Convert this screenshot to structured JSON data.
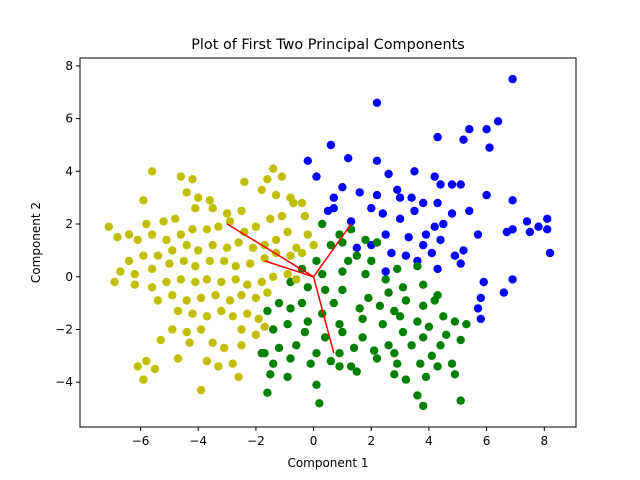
{
  "chart_data": {
    "type": "scatter",
    "title": "Plot of First Two Principal Components",
    "xlabel": "Component 1",
    "ylabel": "Component 2",
    "xlim": [
      -8.1,
      9.1
    ],
    "ylim": [
      -5.7,
      8.3
    ],
    "xticks": [
      -6,
      -4,
      -2,
      0,
      2,
      4,
      6,
      8
    ],
    "yticks": [
      -4,
      -2,
      0,
      2,
      4,
      6,
      8
    ],
    "grid": false,
    "legend": "none",
    "series": [
      {
        "color": "#0000ff",
        "points": [
          [
            6.9,
            7.5
          ],
          [
            2.2,
            6.6
          ],
          [
            5.4,
            5.6
          ],
          [
            6.4,
            5.9
          ],
          [
            4.3,
            5.3
          ],
          [
            6.0,
            5.6
          ],
          [
            5.2,
            5.2
          ],
          [
            6.1,
            4.9
          ],
          [
            0.6,
            5.0
          ],
          [
            -0.2,
            4.4
          ],
          [
            1.2,
            4.5
          ],
          [
            2.2,
            4.4
          ],
          [
            3.5,
            4.0
          ],
          [
            0.1,
            3.8
          ],
          [
            2.6,
            3.9
          ],
          [
            2.9,
            3.3
          ],
          [
            4.2,
            3.8
          ],
          [
            1.0,
            3.4
          ],
          [
            1.6,
            3.2
          ],
          [
            2.2,
            3.1
          ],
          [
            0.7,
            3.0
          ],
          [
            3.0,
            3.0
          ],
          [
            3.4,
            3.0
          ],
          [
            4.8,
            3.5
          ],
          [
            5.1,
            3.5
          ],
          [
            4.4,
            3.5
          ],
          [
            6.0,
            3.1
          ],
          [
            3.8,
            2.8
          ],
          [
            4.3,
            2.8
          ],
          [
            2.0,
            2.6
          ],
          [
            2.4,
            2.4
          ],
          [
            3.5,
            2.5
          ],
          [
            4.8,
            2.4
          ],
          [
            5.4,
            2.5
          ],
          [
            6.9,
            2.9
          ],
          [
            0.5,
            2.5
          ],
          [
            0.7,
            2.6
          ],
          [
            1.3,
            2.1
          ],
          [
            3.0,
            2.2
          ],
          [
            4.2,
            1.9
          ],
          [
            4.5,
            2.0
          ],
          [
            7.8,
            1.9
          ],
          [
            8.1,
            2.2
          ],
          [
            7.4,
            2.1
          ],
          [
            8.1,
            1.8
          ],
          [
            7.5,
            1.7
          ],
          [
            6.9,
            1.8
          ],
          [
            6.7,
            1.7
          ],
          [
            5.7,
            1.6
          ],
          [
            3.3,
            1.5
          ],
          [
            3.9,
            1.6
          ],
          [
            4.4,
            1.4
          ],
          [
            2.5,
            1.6
          ],
          [
            2.0,
            1.2
          ],
          [
            1.5,
            1.1
          ],
          [
            3.8,
            1.2
          ],
          [
            2.7,
            0.9
          ],
          [
            3.2,
            0.8
          ],
          [
            4.1,
            0.9
          ],
          [
            5.2,
            1.0
          ],
          [
            4.9,
            0.8
          ],
          [
            3.6,
            0.6
          ],
          [
            4.3,
            0.3
          ],
          [
            5.1,
            0.5
          ],
          [
            2.5,
            0.2
          ],
          [
            6.9,
            -0.1
          ],
          [
            5.9,
            -0.2
          ],
          [
            6.6,
            -0.6
          ],
          [
            5.8,
            -0.8
          ],
          [
            5.7,
            -1.2
          ],
          [
            5.8,
            -1.6
          ],
          [
            8.2,
            0.9
          ]
        ]
      },
      {
        "color": "#008000",
        "points": [
          [
            0.3,
            2.0
          ],
          [
            0.9,
            1.6
          ],
          [
            1.3,
            1.8
          ],
          [
            0.6,
            1.2
          ],
          [
            1.0,
            1.3
          ],
          [
            1.8,
            1.4
          ],
          [
            2.2,
            1.3
          ],
          [
            1.5,
            0.8
          ],
          [
            2.0,
            0.6
          ],
          [
            1.2,
            0.6
          ],
          [
            0.1,
            0.6
          ],
          [
            -0.4,
            0.3
          ],
          [
            0.3,
            0.1
          ],
          [
            1.0,
            0.2
          ],
          [
            1.8,
            0.1
          ],
          [
            2.5,
            -0.1
          ],
          [
            2.9,
            0.3
          ],
          [
            3.6,
            0.4
          ],
          [
            3.1,
            -0.4
          ],
          [
            2.6,
            -0.6
          ],
          [
            1.9,
            -0.8
          ],
          [
            1.0,
            -0.5
          ],
          [
            0.4,
            -0.5
          ],
          [
            -0.2,
            -0.4
          ],
          [
            -0.8,
            -0.2
          ],
          [
            3.8,
            -0.3
          ],
          [
            4.3,
            -0.7
          ],
          [
            4.2,
            -0.9
          ],
          [
            3.8,
            -1.1
          ],
          [
            3.2,
            -0.9
          ],
          [
            2.8,
            -1.3
          ],
          [
            2.3,
            -1.1
          ],
          [
            1.6,
            -1.2
          ],
          [
            0.7,
            -1.0
          ],
          [
            0.3,
            -1.4
          ],
          [
            -0.4,
            -1.0
          ],
          [
            -0.8,
            -1.2
          ],
          [
            -1.2,
            -1.0
          ],
          [
            -1.6,
            -1.3
          ],
          [
            -0.2,
            -1.7
          ],
          [
            0.9,
            -1.8
          ],
          [
            1.7,
            -1.6
          ],
          [
            2.4,
            -1.8
          ],
          [
            3.0,
            -1.5
          ],
          [
            3.6,
            -1.7
          ],
          [
            4.0,
            -1.9
          ],
          [
            4.5,
            -1.5
          ],
          [
            4.9,
            -1.7
          ],
          [
            5.3,
            -1.8
          ],
          [
            4.6,
            -2.2
          ],
          [
            3.8,
            -2.3
          ],
          [
            3.1,
            -2.1
          ],
          [
            2.6,
            -2.6
          ],
          [
            1.7,
            -2.3
          ],
          [
            1.0,
            -2.1
          ],
          [
            0.4,
            -2.3
          ],
          [
            -0.3,
            -2.1
          ],
          [
            -0.9,
            -1.8
          ],
          [
            -1.4,
            -2.0
          ],
          [
            -0.6,
            -2.6
          ],
          [
            -1.2,
            -2.7
          ],
          [
            -1.7,
            -2.9
          ],
          [
            0.1,
            -2.9
          ],
          [
            0.9,
            -2.9
          ],
          [
            1.4,
            -2.7
          ],
          [
            2.1,
            -2.8
          ],
          [
            2.8,
            -2.9
          ],
          [
            3.4,
            -2.6
          ],
          [
            4.4,
            -2.6
          ],
          [
            5.1,
            -2.4
          ],
          [
            4.1,
            -3.0
          ],
          [
            3.7,
            -3.3
          ],
          [
            2.9,
            -3.3
          ],
          [
            2.2,
            -3.1
          ],
          [
            1.3,
            -3.4
          ],
          [
            0.6,
            -3.2
          ],
          [
            -0.1,
            -3.3
          ],
          [
            -0.8,
            -3.1
          ],
          [
            -1.4,
            -3.3
          ],
          [
            -1.8,
            -2.9
          ],
          [
            4.3,
            -3.4
          ],
          [
            4.8,
            -3.3
          ],
          [
            3.9,
            -3.8
          ],
          [
            3.2,
            -3.9
          ],
          [
            2.8,
            -3.7
          ],
          [
            1.5,
            -3.6
          ],
          [
            0.9,
            -3.4
          ],
          [
            -0.9,
            -3.8
          ],
          [
            -1.5,
            -3.7
          ],
          [
            -1.6,
            -4.4
          ],
          [
            0.1,
            -4.1
          ],
          [
            3.6,
            -4.5
          ],
          [
            3.8,
            -4.9
          ],
          [
            5.1,
            -4.7
          ],
          [
            0.2,
            -4.8
          ],
          [
            4.9,
            -3.7
          ]
        ]
      },
      {
        "color": "#bfbf00",
        "points": [
          [
            -5.6,
            4.0
          ],
          [
            -4.6,
            3.8
          ],
          [
            -4.2,
            3.7
          ],
          [
            -1.4,
            4.1
          ],
          [
            -1.6,
            3.7
          ],
          [
            -1.1,
            3.8
          ],
          [
            -5.9,
            2.9
          ],
          [
            -4.4,
            3.2
          ],
          [
            -4.0,
            3.0
          ],
          [
            -3.6,
            2.9
          ],
          [
            -2.4,
            3.6
          ],
          [
            -1.8,
            3.3
          ],
          [
            -1.3,
            3.1
          ],
          [
            -0.8,
            3.0
          ],
          [
            -2.5,
            2.5
          ],
          [
            -3.0,
            2.4
          ],
          [
            -3.5,
            2.6
          ],
          [
            -4.1,
            2.6
          ],
          [
            -4.8,
            2.2
          ],
          [
            -5.2,
            2.1
          ],
          [
            -5.8,
            2.0
          ],
          [
            -6.4,
            1.6
          ],
          [
            -7.1,
            1.9
          ],
          [
            -6.8,
            1.5
          ],
          [
            -6.1,
            1.4
          ],
          [
            -5.6,
            1.6
          ],
          [
            -5.1,
            1.4
          ],
          [
            -4.6,
            1.6
          ],
          [
            -4.2,
            1.8
          ],
          [
            -3.7,
            1.8
          ],
          [
            -3.3,
            1.9
          ],
          [
            -2.9,
            2.1
          ],
          [
            -2.4,
            1.7
          ],
          [
            -2.0,
            1.9
          ],
          [
            -1.5,
            2.2
          ],
          [
            -1.1,
            2.3
          ],
          [
            -0.7,
            2.8
          ],
          [
            -0.4,
            2.8
          ],
          [
            -0.3,
            2.3
          ],
          [
            -0.9,
            1.7
          ],
          [
            -1.3,
            1.4
          ],
          [
            -1.7,
            1.2
          ],
          [
            -2.1,
            1.1
          ],
          [
            -2.6,
            1.3
          ],
          [
            -3.0,
            1.1
          ],
          [
            -3.5,
            1.2
          ],
          [
            -4.0,
            1.0
          ],
          [
            -4.4,
            1.2
          ],
          [
            -4.9,
            1.0
          ],
          [
            -5.4,
            0.8
          ],
          [
            -5.9,
            0.8
          ],
          [
            -6.4,
            0.6
          ],
          [
            -6.7,
            0.2
          ],
          [
            -6.2,
            0.1
          ],
          [
            -5.6,
            0.3
          ],
          [
            -5.0,
            0.5
          ],
          [
            -4.5,
            0.6
          ],
          [
            -4.1,
            0.4
          ],
          [
            -3.6,
            0.6
          ],
          [
            -3.1,
            0.6
          ],
          [
            -2.7,
            0.4
          ],
          [
            -2.2,
            0.5
          ],
          [
            -1.7,
            0.7
          ],
          [
            -1.3,
            0.9
          ],
          [
            -0.8,
            0.8
          ],
          [
            -0.4,
            0.9
          ],
          [
            0.0,
            1.2
          ],
          [
            -0.2,
            1.6
          ],
          [
            -0.6,
            1.1
          ],
          [
            -6.9,
            -0.2
          ],
          [
            -6.2,
            -0.3
          ],
          [
            -5.6,
            -0.4
          ],
          [
            -5.1,
            -0.2
          ],
          [
            -4.6,
            -0.1
          ],
          [
            -4.1,
            -0.2
          ],
          [
            -3.7,
            -0.1
          ],
          [
            -3.2,
            -0.2
          ],
          [
            -2.7,
            -0.1
          ],
          [
            -2.3,
            -0.3
          ],
          [
            -1.8,
            -0.2
          ],
          [
            -1.4,
            0.0
          ],
          [
            -0.9,
            0.1
          ],
          [
            -0.6,
            -0.1
          ],
          [
            -5.4,
            -0.9
          ],
          [
            -4.9,
            -0.7
          ],
          [
            -4.4,
            -0.9
          ],
          [
            -3.9,
            -0.8
          ],
          [
            -3.4,
            -0.7
          ],
          [
            -2.9,
            -0.9
          ],
          [
            -2.5,
            -0.7
          ],
          [
            -2.0,
            -0.8
          ],
          [
            -1.6,
            -0.6
          ],
          [
            -4.7,
            -1.3
          ],
          [
            -4.2,
            -1.4
          ],
          [
            -3.7,
            -1.5
          ],
          [
            -3.2,
            -1.3
          ],
          [
            -2.8,
            -1.5
          ],
          [
            -2.3,
            -1.4
          ],
          [
            -1.9,
            -1.6
          ],
          [
            -4.9,
            -2.0
          ],
          [
            -4.4,
            -2.1
          ],
          [
            -3.9,
            -2.0
          ],
          [
            -2.5,
            -2.0
          ],
          [
            -2.0,
            -2.2
          ],
          [
            -4.3,
            -2.5
          ],
          [
            -3.5,
            -2.5
          ],
          [
            -2.5,
            -2.6
          ],
          [
            -5.3,
            -2.4
          ],
          [
            -5.8,
            -3.2
          ],
          [
            -6.1,
            -3.4
          ],
          [
            -4.7,
            -3.1
          ],
          [
            -3.7,
            -3.2
          ],
          [
            -3.3,
            -3.4
          ],
          [
            -2.8,
            -3.3
          ],
          [
            -2.6,
            -3.8
          ],
          [
            -5.9,
            -3.9
          ],
          [
            -5.5,
            -3.5
          ],
          [
            -3.9,
            -4.3
          ],
          [
            -3.1,
            -2.7
          ],
          [
            -1.7,
            -1.9
          ]
        ]
      }
    ],
    "loading_vectors": {
      "color": "#ff0000",
      "origin": [
        0,
        0
      ],
      "endpoints": [
        [
          -3.0,
          2.0
        ],
        [
          -1.7,
          0.6
        ],
        [
          1.3,
          2.0
        ],
        [
          0.7,
          -2.9
        ]
      ]
    }
  }
}
